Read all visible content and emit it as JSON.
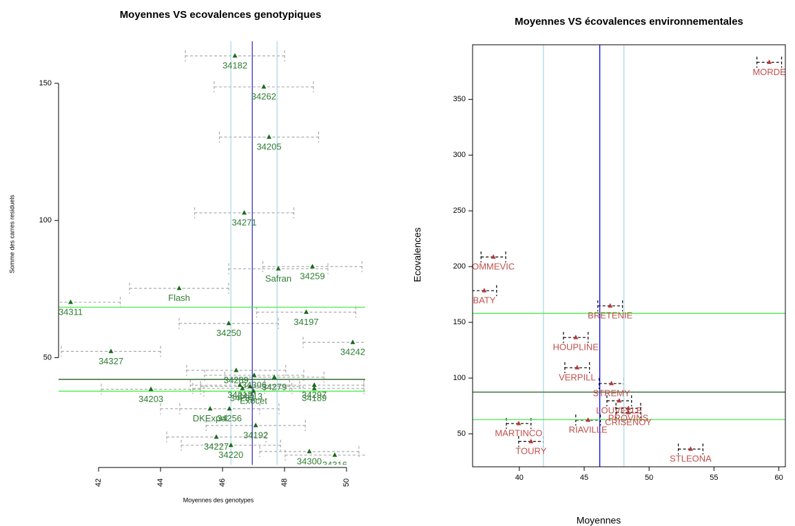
{
  "chart_data": [
    {
      "type": "scatter",
      "title": "Moyennes VS ecovalences genotypiques",
      "xlabel": "Moyennes des genotypes",
      "ylabel": "Somme des carres residuels",
      "xlim": [
        40.71,
        50.6
      ],
      "ylim": [
        11,
        165.3
      ],
      "xticks": [
        42,
        44,
        46,
        48,
        50
      ],
      "yticks": [
        50,
        100,
        150
      ],
      "marker_color": "#1b6b1b",
      "label_color": "#2e7d32",
      "errorbar_color": "#aaaaaa",
      "box": false,
      "labels": [
        "34182",
        "34262",
        "34205",
        "34271",
        "Safran",
        "34259",
        "Flash",
        "34311",
        "34197",
        "34250",
        "34327",
        "34242",
        "34289",
        "34306",
        "34279",
        "34212",
        "34213",
        "34233",
        "Exocet",
        "34297",
        "34189",
        "34203",
        "DKExpol",
        "34256",
        "34192",
        "34227",
        "34220",
        "34300",
        "34316"
      ],
      "x": [
        46.4,
        47.33,
        47.5,
        46.7,
        47.8,
        48.9,
        44.6,
        41.1,
        48.7,
        46.2,
        42.4,
        50.2,
        46.44,
        47.02,
        47.67,
        46.56,
        46.89,
        46.64,
        47.0,
        48.96,
        48.96,
        43.69,
        45.6,
        46.22,
        47.07,
        45.8,
        46.27,
        48.8,
        49.62
      ],
      "values": [
        160,
        148.7,
        130.4,
        102.8,
        82.4,
        83.2,
        75.3,
        70.2,
        66.6,
        62.5,
        52.3,
        55.6,
        45.4,
        43.6,
        42.9,
        40.0,
        39.5,
        38.8,
        37.8,
        40.0,
        38.8,
        38.5,
        31.4,
        31.4,
        25.3,
        21.1,
        18.1,
        15.8,
        14.5
      ],
      "xerr": [
        1.6,
        1.6,
        1.6,
        1.6,
        1.6,
        1.6,
        1.6,
        1.6,
        1.6,
        1.6,
        1.6,
        1.6,
        1.6,
        1.6,
        1.6,
        1.6,
        1.6,
        1.6,
        1.6,
        1.6,
        1.6,
        1.6,
        1.6,
        1.6,
        1.6,
        1.6,
        1.6,
        1.6,
        1.6
      ],
      "vlines": [
        {
          "value": 46.96,
          "color": "#3333cc"
        },
        {
          "value": 46.27,
          "color": "#add8e6"
        },
        {
          "value": 47.76,
          "color": "#add8e6"
        }
      ],
      "hlines": [
        {
          "value": 42.1,
          "color": "#1b5e20"
        },
        {
          "value": 68.4,
          "color": "#44ee44"
        },
        {
          "value": 37.8,
          "color": "#44ee44"
        }
      ]
    },
    {
      "type": "scatter",
      "title": "Moyennes VS écovalences environnementales",
      "xlabel": "Moyennes",
      "ylabel": "Ecovalences",
      "xlim": [
        36.4,
        60.5
      ],
      "ylim": [
        20.4,
        399
      ],
      "xticks": [
        40,
        45,
        50,
        55,
        60
      ],
      "yticks": [
        50,
        100,
        150,
        200,
        250,
        300,
        350
      ],
      "marker_color": "#b03a3a",
      "label_color": "#c0504d",
      "errorbar_color": "#000000",
      "box": true,
      "labels": [
        "MORDE",
        "OMMEVIC",
        "BATY",
        "BRETENIE",
        "HOUPLINE",
        "VERPILL",
        "STREMY",
        "LOUVELLE",
        "PROVINS",
        "CRISENOY",
        "RIAVILLE",
        "MARTINCO",
        "TOURY",
        "STLEONA"
      ],
      "x": [
        59.26,
        38.0,
        37.3,
        47.0,
        44.35,
        44.46,
        47.1,
        47.7,
        48.4,
        48.4,
        45.3,
        39.95,
        40.9,
        53.2
      ],
      "values": [
        383.3,
        208.6,
        178.4,
        164.8,
        136.4,
        109.3,
        95.1,
        79.6,
        72.8,
        69.1,
        62.3,
        59.2,
        43.1,
        36.3
      ],
      "xerr": [
        0.95,
        0.95,
        0.95,
        0.95,
        0.95,
        0.95,
        0.95,
        0.95,
        0.95,
        0.95,
        0.95,
        0.95,
        0.95,
        0.95
      ],
      "vlines": [
        {
          "value": 46.2,
          "color": "#0000ee"
        },
        {
          "value": 41.86,
          "color": "#add8e6"
        },
        {
          "value": 48.06,
          "color": "#add8e6"
        }
      ],
      "hlines": [
        {
          "value": 87.4,
          "color": "#1b5e20"
        },
        {
          "value": 158,
          "color": "#44ee44"
        },
        {
          "value": 62.7,
          "color": "#44ee44"
        }
      ]
    }
  ]
}
